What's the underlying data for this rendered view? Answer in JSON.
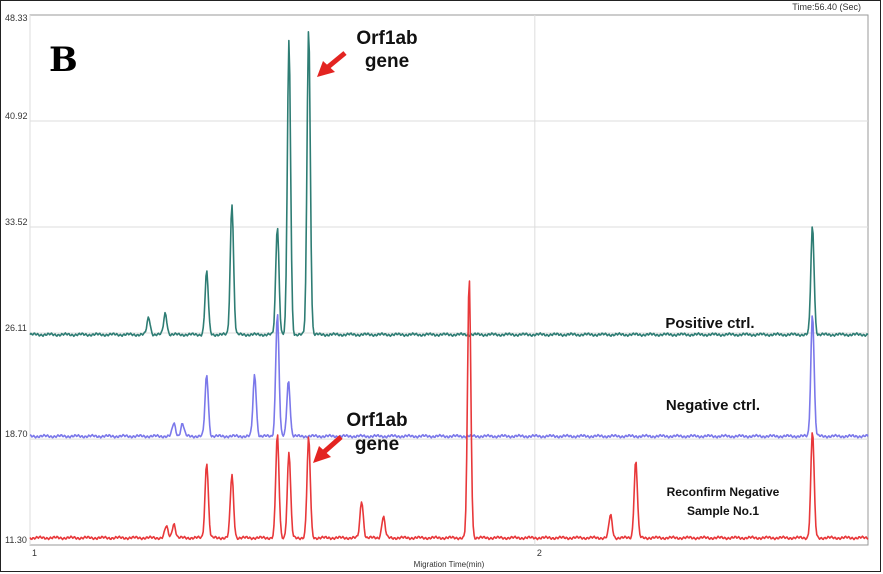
{
  "panel_letter": "B",
  "time_readout": "Time:56.40 (Sec)",
  "chart_data": {
    "type": "line",
    "xlabel": "Migration Time(min)",
    "ylabel": "",
    "xlim": [
      1,
      2.66
    ],
    "ylim": [
      11.3,
      48.33
    ],
    "x_ticks": [
      {
        "value": 1,
        "label": "1"
      },
      {
        "value": 2,
        "label": "2"
      }
    ],
    "y_ticks": [
      {
        "value": 48.33,
        "label": "48.33"
      },
      {
        "value": 40.92,
        "label": "40.92"
      },
      {
        "value": 33.52,
        "label": "33.52"
      },
      {
        "value": 26.11,
        "label": "26.11"
      },
      {
        "value": 18.7,
        "label": "18.70"
      },
      {
        "value": 11.3,
        "label": "11.30"
      }
    ],
    "grid": true,
    "series": [
      {
        "name": "Positive ctrl.",
        "color": "#2e7d74",
        "baseline": 26.0,
        "peaks": [
          {
            "x": 1.235,
            "height": 1.2
          },
          {
            "x": 1.268,
            "height": 1.5
          },
          {
            "x": 1.35,
            "height": 4.4
          },
          {
            "x": 1.4,
            "height": 9.2
          },
          {
            "x": 1.49,
            "height": 7.6
          },
          {
            "x": 1.513,
            "height": 20.5
          },
          {
            "x": 1.552,
            "height": 21.5
          },
          {
            "x": 2.55,
            "height": 7.6
          }
        ]
      },
      {
        "name": "Negative ctrl.",
        "color": "#7b78ea",
        "baseline": 18.9,
        "peaks": [
          {
            "x": 1.285,
            "height": 0.9
          },
          {
            "x": 1.302,
            "height": 0.9
          },
          {
            "x": 1.35,
            "height": 4.3
          },
          {
            "x": 1.445,
            "height": 4.3
          },
          {
            "x": 1.49,
            "height": 8.6
          },
          {
            "x": 1.512,
            "height": 3.9
          },
          {
            "x": 2.55,
            "height": 8.6
          }
        ]
      },
      {
        "name": "Reconfirm Negative Sample No.1",
        "color": "#e8383a",
        "baseline": 11.8,
        "peaks": [
          {
            "x": 1.27,
            "height": 0.8
          },
          {
            "x": 1.285,
            "height": 1.0
          },
          {
            "x": 1.35,
            "height": 5.3
          },
          {
            "x": 1.4,
            "height": 4.4
          },
          {
            "x": 1.49,
            "height": 7.2
          },
          {
            "x": 1.513,
            "height": 6.0
          },
          {
            "x": 1.552,
            "height": 7.0
          },
          {
            "x": 1.657,
            "height": 2.6
          },
          {
            "x": 1.7,
            "height": 1.5
          },
          {
            "x": 1.87,
            "height": 18.2
          },
          {
            "x": 2.15,
            "height": 1.6
          },
          {
            "x": 2.2,
            "height": 5.4
          },
          {
            "x": 2.55,
            "height": 7.5
          }
        ]
      }
    ]
  },
  "annotations": {
    "top_gene_line1": "Orf1ab",
    "top_gene_line2": "gene",
    "mid_gene_line1": "Orf1ab",
    "mid_gene_line2": "gene",
    "positive_label": "Positive ctrl.",
    "negative_label": "Negative ctrl.",
    "reconfirm_line1": "Reconfirm Negative",
    "reconfirm_line2": "Sample No.1",
    "arrow_color": "#e32421"
  }
}
